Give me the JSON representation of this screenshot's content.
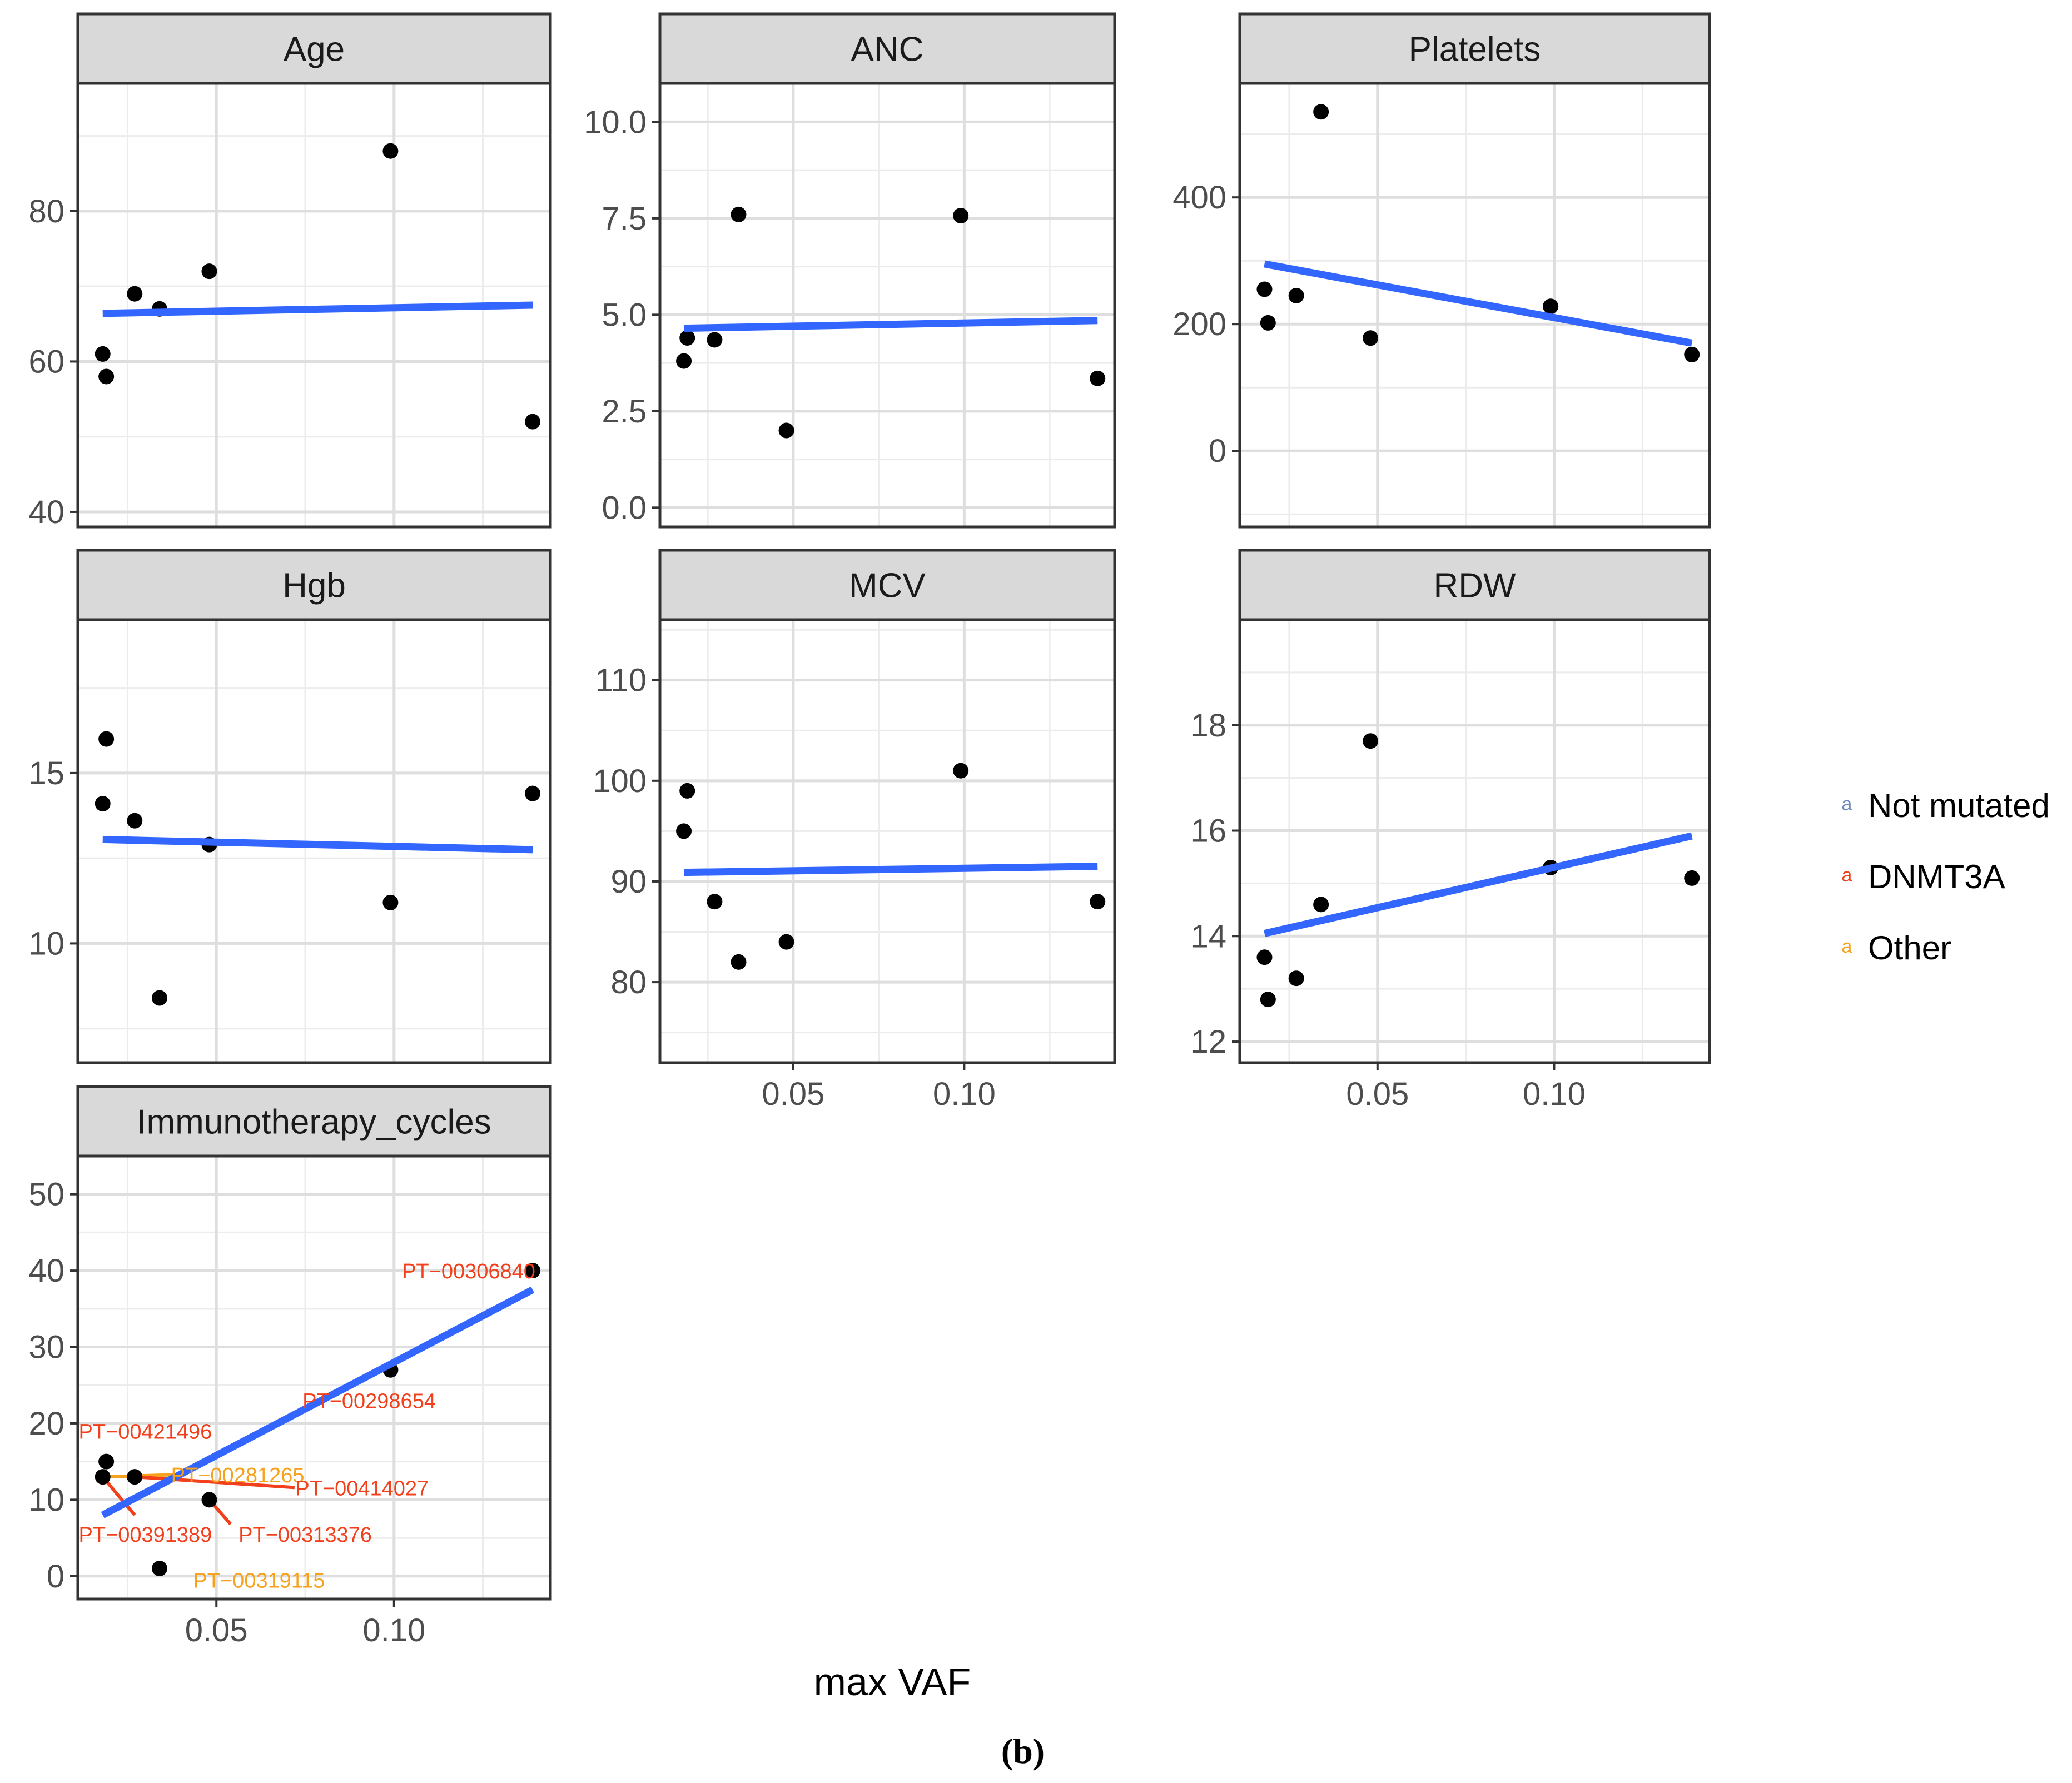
{
  "chart_data": {
    "type": "scatter",
    "xlabel": "max VAF",
    "x_ticks": [
      0.05,
      0.1
    ],
    "x_tick_labels": [
      "0.05",
      "0.10"
    ],
    "xlim": [
      0.011,
      0.144
    ],
    "caption": "(b)",
    "legend": {
      "position": "right",
      "key_glyph": "a",
      "entries": [
        {
          "label": "Not mutated",
          "color": "#6A8BBF"
        },
        {
          "label": "DNMT3A",
          "color": "#F2401C"
        },
        {
          "label": "Other",
          "color": "#F7A21C"
        }
      ]
    },
    "fit_color": "#3366FF",
    "point_color": "#000000",
    "panels": [
      {
        "title": "Age",
        "ylim": [
          38,
          97
        ],
        "y_ticks": [
          40,
          60,
          80
        ],
        "y_tick_labels": [
          "40",
          "60",
          "80"
        ],
        "show_x_labels": false,
        "x": [
          0.018,
          0.019,
          0.027,
          0.034,
          0.048,
          0.099,
          0.139
        ],
        "y": [
          61,
          58,
          69,
          67,
          72,
          88,
          52
        ],
        "fit": [
          [
            0.018,
            66.4
          ],
          [
            0.139,
            67.5
          ]
        ]
      },
      {
        "title": "ANC",
        "ylim": [
          -0.5,
          11.0
        ],
        "y_ticks": [
          0.0,
          2.5,
          5.0,
          7.5,
          10.0
        ],
        "y_tick_labels": [
          "0.0",
          "2.5",
          "5.0",
          "7.5",
          "10.0"
        ],
        "show_x_labels": false,
        "x": [
          0.018,
          0.019,
          0.027,
          0.034,
          0.048,
          0.099,
          0.139
        ],
        "y": [
          3.8,
          4.4,
          4.35,
          7.6,
          2.0,
          7.57,
          3.35
        ],
        "fit": [
          [
            0.018,
            4.65
          ],
          [
            0.139,
            4.85
          ]
        ]
      },
      {
        "title": "Platelets",
        "ylim": [
          -120,
          580
        ],
        "y_ticks": [
          0,
          200,
          400
        ],
        "y_tick_labels": [
          "0",
          "200",
          "400"
        ],
        "show_x_labels": false,
        "x": [
          0.018,
          0.019,
          0.027,
          0.034,
          0.048,
          0.099,
          0.139
        ],
        "y": [
          255,
          202,
          245,
          535,
          178,
          228,
          152
        ],
        "fit": [
          [
            0.018,
            295
          ],
          [
            0.139,
            170
          ]
        ]
      },
      {
        "title": "Hgb",
        "ylim": [
          6.5,
          19.5
        ],
        "y_ticks": [
          10,
          15
        ],
        "y_tick_labels": [
          "10",
          "15"
        ],
        "show_x_labels": false,
        "x": [
          0.018,
          0.019,
          0.027,
          0.034,
          0.048,
          0.099,
          0.139
        ],
        "y": [
          14.1,
          16.0,
          13.6,
          8.4,
          12.9,
          11.2,
          14.4
        ],
        "fit": [
          [
            0.018,
            13.05
          ],
          [
            0.139,
            12.75
          ]
        ]
      },
      {
        "title": "MCV",
        "ylim": [
          72,
          116
        ],
        "y_ticks": [
          80,
          90,
          100,
          110
        ],
        "y_tick_labels": [
          "80",
          "90",
          "100",
          "110"
        ],
        "show_x_labels": true,
        "x": [
          0.018,
          0.019,
          0.027,
          0.034,
          0.048,
          0.099,
          0.139
        ],
        "y": [
          95,
          99,
          88,
          82,
          84,
          101,
          88
        ],
        "fit": [
          [
            0.018,
            90.9
          ],
          [
            0.139,
            91.5
          ]
        ]
      },
      {
        "title": "RDW",
        "ylim": [
          11.6,
          20.0
        ],
        "y_ticks": [
          12,
          14,
          16,
          18
        ],
        "y_tick_labels": [
          "12",
          "14",
          "16",
          "18"
        ],
        "show_x_labels": true,
        "x": [
          0.018,
          0.019,
          0.027,
          0.034,
          0.048,
          0.099,
          0.139
        ],
        "y": [
          13.6,
          12.8,
          13.2,
          14.6,
          17.7,
          15.3,
          15.1
        ],
        "fit": [
          [
            0.018,
            14.05
          ],
          [
            0.139,
            15.9
          ]
        ]
      },
      {
        "title": "Immunotherapy_cycles",
        "ylim": [
          -3,
          55
        ],
        "y_ticks": [
          0,
          10,
          20,
          30,
          40,
          50
        ],
        "y_tick_labels": [
          "0",
          "10",
          "20",
          "30",
          "40",
          "50"
        ],
        "show_x_labels": true,
        "x": [
          0.018,
          0.019,
          0.027,
          0.034,
          0.048,
          0.099,
          0.139
        ],
        "y": [
          13,
          15,
          13,
          1,
          10,
          27,
          40
        ],
        "fit": [
          [
            0.018,
            8.0
          ],
          [
            0.139,
            37.5
          ]
        ],
        "labels": [
          {
            "text": "PT−00306840",
            "group": "DNMT3A",
            "point": [
              0.139,
              40
            ],
            "at": [
              0.121,
              40.0
            ],
            "anchor": "middle"
          },
          {
            "text": "PT−00298654",
            "group": "DNMT3A",
            "point": [
              0.099,
              27
            ],
            "at": [
              0.093,
              23.0
            ],
            "anchor": "middle"
          },
          {
            "text": "PT−00421496",
            "group": "DNMT3A",
            "point": [
              0.019,
              15
            ],
            "at": [
              0.03,
              19.0
            ],
            "anchor": "middle"
          },
          {
            "text": "PT−00281265",
            "group": "Other",
            "point": [
              0.018,
              13
            ],
            "at": [
              0.056,
              13.3
            ],
            "anchor": "middle"
          },
          {
            "text": "PT−00414027",
            "group": "DNMT3A",
            "point": [
              0.027,
              13
            ],
            "at": [
              0.091,
              11.6
            ],
            "anchor": "middle"
          },
          {
            "text": "PT−00391389",
            "group": "DNMT3A",
            "point": [
              0.018,
              13
            ],
            "at": [
              0.03,
              5.5
            ],
            "anchor": "middle"
          },
          {
            "text": "PT−00313376",
            "group": "DNMT3A",
            "point": [
              0.048,
              10
            ],
            "at": [
              0.075,
              5.5
            ],
            "anchor": "middle"
          },
          {
            "text": "PT−00319115",
            "group": "Other",
            "point": [
              0.034,
              1
            ],
            "at": [
              0.062,
              -0.5
            ],
            "anchor": "middle"
          }
        ],
        "segments": [
          {
            "group": "Other",
            "from": [
              0.018,
              13
            ],
            "to": [
              0.04,
              13.3
            ]
          },
          {
            "group": "DNMT3A",
            "from": [
              0.027,
              13
            ],
            "to": [
              0.072,
              11.6
            ]
          },
          {
            "group": "DNMT3A",
            "from": [
              0.018,
              13
            ],
            "to": [
              0.027,
              8.0
            ]
          },
          {
            "group": "DNMT3A",
            "from": [
              0.048,
              10
            ],
            "to": [
              0.054,
              6.8
            ]
          }
        ]
      }
    ]
  }
}
